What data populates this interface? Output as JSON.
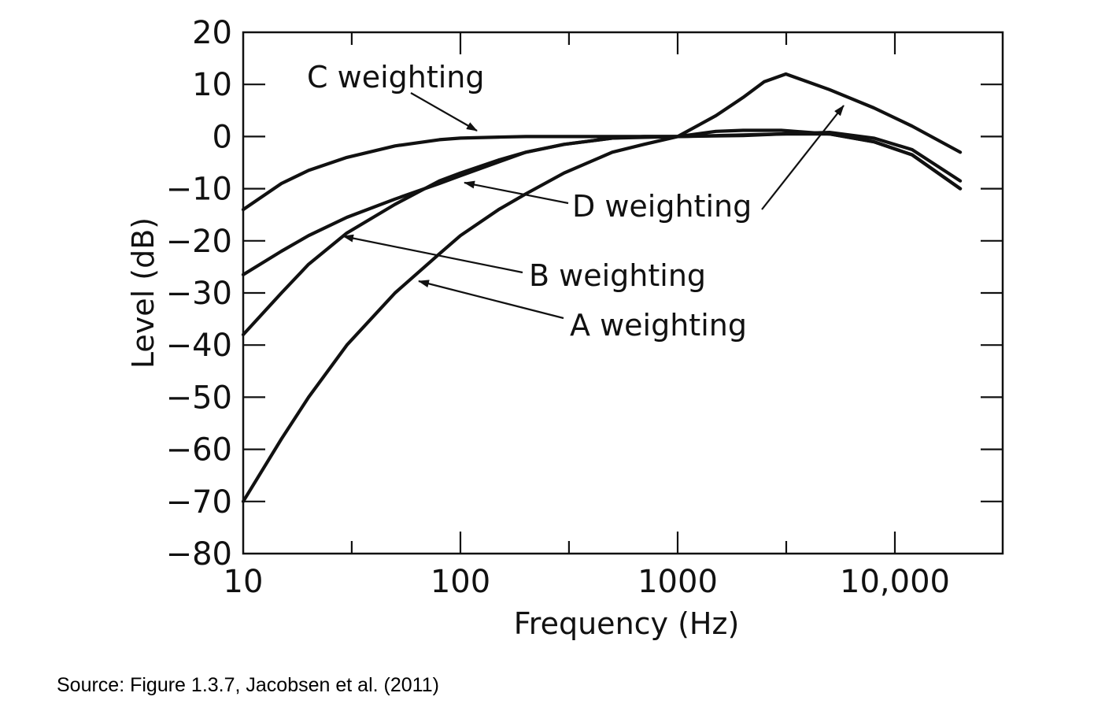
{
  "chart_data": {
    "type": "line",
    "xlabel": "Frequency (Hz)",
    "ylabel": "Level (dB)",
    "xscale": "log",
    "xlim": [
      10,
      25000
    ],
    "ylim": [
      -80,
      20
    ],
    "x_ticks": [
      10,
      100,
      1000,
      10000
    ],
    "x_tick_labels": [
      "10",
      "100",
      "1000",
      "10,000"
    ],
    "x_minor_ticks": [
      31.6,
      316,
      3162
    ],
    "y_ticks": [
      20,
      10,
      0,
      -10,
      -20,
      -30,
      -40,
      -50,
      -60,
      -70,
      -80
    ],
    "y_tick_labels": [
      "20",
      "10",
      "0",
      "−10",
      "−20",
      "−30",
      "−40",
      "−50",
      "−60",
      "−70",
      "−80"
    ],
    "grid": false,
    "legend": "none",
    "series": [
      {
        "name": "A weighting",
        "x": [
          10,
          15,
          20,
          30,
          50,
          80,
          100,
          150,
          200,
          300,
          500,
          700,
          1000,
          1500,
          2000,
          3000,
          5000,
          8000,
          12000,
          20000
        ],
        "y": [
          -70,
          -58,
          -50,
          -40,
          -30,
          -22.5,
          -19,
          -14,
          -11,
          -7,
          -3,
          -1.5,
          0,
          1,
          1.2,
          1.2,
          0.5,
          -1,
          -3.5,
          -10
        ]
      },
      {
        "name": "B weighting",
        "x": [
          10,
          15,
          20,
          30,
          50,
          80,
          100,
          150,
          200,
          300,
          500,
          700,
          1000,
          2000,
          3000,
          5000,
          8000,
          12000,
          20000
        ],
        "y": [
          -38,
          -30,
          -24.5,
          -18.5,
          -13,
          -8.5,
          -7,
          -4.5,
          -3,
          -1.5,
          -0.3,
          0,
          0,
          0.3,
          0.5,
          0.5,
          -1,
          -3.5,
          -10
        ]
      },
      {
        "name": "C weighting",
        "x": [
          10,
          15,
          20,
          30,
          50,
          80,
          100,
          150,
          200,
          300,
          500,
          1000,
          2000,
          3000,
          5000,
          8000,
          12000,
          20000
        ],
        "y": [
          -14,
          -9,
          -6.5,
          -4,
          -1.8,
          -0.6,
          -0.3,
          -0.1,
          0,
          0,
          0,
          0,
          0.2,
          0.5,
          0.8,
          -0.3,
          -2.5,
          -8.5
        ]
      },
      {
        "name": "D weighting",
        "x": [
          10,
          15,
          20,
          30,
          50,
          80,
          100,
          200,
          300,
          500,
          1000,
          1500,
          2000,
          2500,
          3150,
          5000,
          8000,
          12000,
          20000
        ],
        "y": [
          -26.5,
          -22,
          -19,
          -15.5,
          -12,
          -9,
          -7.5,
          -3,
          -1.5,
          -0.3,
          0,
          4,
          7.5,
          10.5,
          12,
          9,
          5.5,
          2,
          -3
        ]
      }
    ],
    "annotations": [
      {
        "text": "C weighting",
        "series": "C weighting"
      },
      {
        "text": "D weighting",
        "series": "D weighting"
      },
      {
        "text": "B weighting",
        "series": "B weighting"
      },
      {
        "text": "A weighting",
        "series": "A weighting"
      }
    ]
  },
  "source_note": "Source: Figure 1.3.7, Jacobsen et al. (2011)"
}
